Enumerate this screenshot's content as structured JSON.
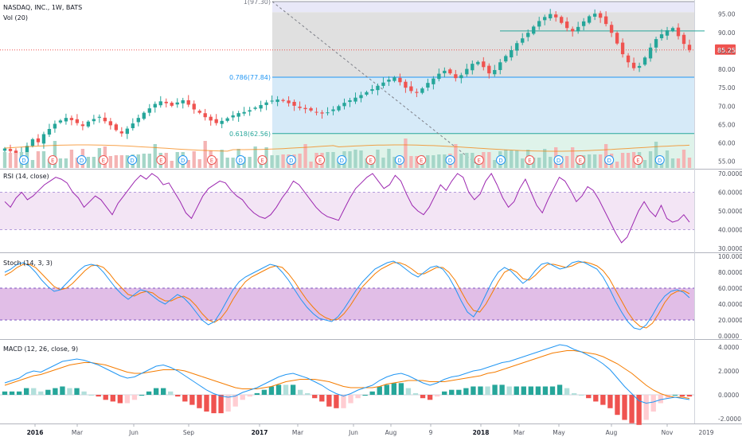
{
  "header": {
    "symbol_title": "NASDAQ, INC., 1W, BATS",
    "volume_label": "Vol (20)"
  },
  "price_tag": {
    "label": "85.25",
    "value": 85.25,
    "color": "#ef5350"
  },
  "colors": {
    "up": "#26a69a",
    "down": "#ef5350",
    "vol_up": "#a5d6c8",
    "vol_down": "#f4b4b4",
    "rsi_line": "#9c27b0",
    "rsi_band": "#f3e5f5",
    "stoch_k": "#2196f3",
    "stoch_d": "#f57c00",
    "stoch_band": "#e1bee7",
    "macd_line": "#2196f3",
    "signal_line": "#f57c00",
    "fib_top_fill": "#e8e8f8",
    "fib_mid_fill": "#e0e0e0",
    "fib_786_fill": "#d6eaf8",
    "fib_618_fill": "#dff3ea",
    "fib_786_line": "#2196f3",
    "fib_618_line": "#26a69a",
    "resistance_line": "#26a69a"
  },
  "fib": {
    "top": {
      "label": "1(97.30)",
      "value": 97.3
    },
    "l786": {
      "label": "0.786(77.84)",
      "value": 77.84
    },
    "l618": {
      "label": "0.618(62.56)",
      "value": 62.56
    }
  },
  "events": [
    "D",
    "E",
    "D",
    "E",
    "D",
    "E",
    "D",
    "E",
    "D",
    "E",
    "D",
    "E",
    "D",
    "E",
    "D",
    "E",
    "D",
    "E",
    "D",
    "E",
    "D",
    "E",
    "D",
    "E",
    "D"
  ],
  "chart_data": [
    {
      "type": "candlestick",
      "title": "NASDAQ, INC., 1W, BATS",
      "ylim": [
        53,
        97.3
      ],
      "y_ticks": [
        "95.00",
        "90.00",
        "85.00",
        "80.00",
        "75.00",
        "70.00",
        "65.00",
        "60.00",
        "55.00"
      ],
      "last_price": 85.25,
      "resistance_level": 90.4,
      "close_series": [
        58.5,
        57.8,
        56.9,
        57.5,
        59.2,
        61.0,
        60.2,
        62.4,
        63.8,
        65.2,
        66.1,
        66.8,
        66.2,
        65.4,
        64.6,
        65.8,
        66.5,
        67.1,
        65.9,
        64.8,
        63.5,
        62.6,
        63.9,
        65.3,
        66.8,
        68.2,
        69.4,
        70.6,
        71.3,
        70.8,
        70.1,
        71.0,
        71.6,
        70.4,
        69.1,
        68.2,
        67.0,
        66.1,
        65.4,
        66.0,
        66.7,
        67.5,
        68.1,
        68.4,
        68.9,
        69.6,
        70.3,
        71.0,
        71.5,
        71.8,
        71.4,
        70.8,
        70.1,
        69.5,
        69.2,
        68.8,
        68.4,
        68.0,
        68.3,
        69.1,
        70.0,
        70.9,
        71.6,
        72.3,
        73.0,
        73.8,
        74.6,
        75.5,
        76.4,
        77.2,
        77.8,
        76.5,
        75.0,
        74.1,
        73.6,
        74.8,
        76.3,
        77.5,
        78.8,
        79.6,
        78.9,
        77.6,
        78.4,
        80.1,
        81.5,
        82.0,
        80.6,
        78.9,
        79.8,
        81.9,
        83.6,
        85.2,
        87.1,
        88.4,
        89.9,
        91.6,
        93.1,
        94.2,
        95.0,
        94.1,
        92.6,
        91.2,
        90.3,
        91.5,
        93.0,
        94.4,
        95.1,
        94.0,
        92.3,
        89.9,
        87.0,
        84.1,
        81.9,
        80.3,
        80.9,
        83.2,
        85.9,
        88.2,
        89.5,
        90.6,
        91.2,
        89.0,
        86.9,
        85.25
      ],
      "volume_label": "Vol (20)",
      "event_markers": [
        "D",
        "E",
        "D",
        "E",
        "D",
        "E",
        "D",
        "E",
        "D",
        "E",
        "D",
        "E",
        "D",
        "E",
        "D",
        "E",
        "D",
        "E",
        "D",
        "E",
        "D",
        "E",
        "D",
        "E",
        "D"
      ]
    },
    {
      "type": "line",
      "title": "RSI (14, close)",
      "ylim": [
        30,
        70
      ],
      "y_ticks": [
        "70.0000",
        "60.0000",
        "50.0000",
        "40.0000",
        "30.0000"
      ],
      "band": [
        40,
        60
      ],
      "series": [
        {
          "values": [
            55,
            52,
            57,
            60,
            56,
            58,
            61,
            64,
            66,
            68,
            67,
            65,
            60,
            57,
            52,
            55,
            58,
            56,
            52,
            48,
            54,
            58,
            62,
            66,
            69,
            67,
            70,
            68,
            64,
            65,
            60,
            55,
            49,
            46,
            52,
            58,
            62,
            64,
            66,
            65,
            61,
            58,
            56,
            52,
            49,
            47,
            46,
            48,
            52,
            57,
            61,
            66,
            64,
            60,
            56,
            52,
            49,
            47,
            46,
            45,
            51,
            57,
            62,
            65,
            68,
            70,
            66,
            62,
            64,
            69,
            66,
            59,
            53,
            50,
            48,
            52,
            58,
            64,
            61,
            66,
            70,
            68,
            60,
            56,
            59,
            66,
            70,
            64,
            57,
            52,
            55,
            62,
            67,
            60,
            53,
            49,
            56,
            62,
            68,
            66,
            61,
            55,
            58,
            63,
            61,
            56,
            50,
            44,
            38,
            33,
            36,
            43,
            50,
            55,
            50,
            47,
            53,
            46,
            44,
            45,
            48,
            44
          ]
        }
      ]
    },
    {
      "type": "line",
      "title": "Stoch (14, 3, 3)",
      "ylim": [
        0,
        100
      ],
      "y_ticks": [
        "100.0000",
        "80.0000",
        "60.0000",
        "40.0000",
        "20.0000",
        "0.0000"
      ],
      "band": [
        20,
        80
      ],
      "series": [
        {
          "name": "%K",
          "values": [
            80,
            84,
            90,
            92,
            88,
            80,
            70,
            62,
            56,
            58,
            66,
            74,
            82,
            88,
            90,
            88,
            80,
            70,
            60,
            52,
            46,
            52,
            58,
            56,
            50,
            44,
            40,
            46,
            52,
            48,
            40,
            30,
            20,
            14,
            18,
            30,
            44,
            58,
            68,
            74,
            78,
            82,
            86,
            90,
            88,
            80,
            70,
            58,
            46,
            36,
            28,
            22,
            20,
            18,
            24,
            34,
            46,
            58,
            68,
            76,
            84,
            88,
            92,
            94,
            90,
            84,
            78,
            74,
            80,
            86,
            88,
            84,
            74,
            60,
            44,
            30,
            24,
            36,
            52,
            68,
            80,
            86,
            82,
            74,
            66,
            72,
            82,
            90,
            92,
            88,
            84,
            86,
            92,
            94,
            92,
            88,
            84,
            74,
            60,
            44,
            30,
            18,
            10,
            8,
            14,
            26,
            40,
            50,
            56,
            58,
            55,
            48
          ]
        },
        {
          "name": "%D",
          "values": [
            76,
            80,
            86,
            90,
            90,
            86,
            78,
            70,
            62,
            58,
            60,
            66,
            74,
            82,
            88,
            89,
            86,
            78,
            68,
            60,
            52,
            50,
            54,
            56,
            54,
            48,
            44,
            44,
            48,
            50,
            46,
            38,
            28,
            20,
            17,
            22,
            32,
            46,
            58,
            68,
            74,
            78,
            82,
            86,
            88,
            86,
            78,
            68,
            56,
            45,
            36,
            28,
            23,
            20,
            21,
            28,
            38,
            50,
            62,
            70,
            78,
            84,
            88,
            92,
            92,
            89,
            84,
            78,
            78,
            82,
            86,
            86,
            80,
            70,
            56,
            42,
            32,
            30,
            40,
            54,
            68,
            80,
            84,
            80,
            72,
            70,
            76,
            84,
            90,
            90,
            88,
            86,
            88,
            92,
            93,
            91,
            88,
            82,
            72,
            58,
            44,
            30,
            19,
            12,
            10,
            16,
            28,
            42,
            52,
            56,
            57,
            53
          ]
        }
      ]
    },
    {
      "type": "line",
      "title": "MACD (12, 26, close, 9)",
      "ylim": [
        -2.4,
        4.4
      ],
      "y_ticks": [
        "4.0000",
        "2.0000",
        "0.0000",
        "-2.0000"
      ],
      "series": [
        {
          "name": "MACD",
          "values": [
            1.0,
            1.2,
            1.4,
            1.8,
            2.0,
            1.9,
            2.2,
            2.5,
            2.8,
            2.9,
            3.0,
            2.9,
            2.7,
            2.5,
            2.2,
            1.9,
            1.6,
            1.4,
            1.5,
            1.8,
            2.1,
            2.4,
            2.5,
            2.3,
            2.0,
            1.6,
            1.2,
            0.8,
            0.4,
            0.1,
            -0.1,
            -0.2,
            -0.1,
            0.2,
            0.4,
            0.6,
            0.9,
            1.2,
            1.5,
            1.7,
            1.8,
            1.6,
            1.4,
            1.1,
            0.8,
            0.4,
            0.1,
            -0.1,
            0.1,
            0.4,
            0.6,
            0.8,
            1.2,
            1.5,
            1.7,
            1.8,
            1.6,
            1.3,
            1.0,
            0.8,
            1.0,
            1.3,
            1.5,
            1.6,
            1.8,
            2.0,
            2.1,
            2.3,
            2.5,
            2.7,
            2.8,
            3.0,
            3.2,
            3.4,
            3.6,
            3.8,
            4.0,
            4.2,
            4.1,
            3.8,
            3.6,
            3.3,
            3.0,
            2.6,
            2.1,
            1.4,
            0.7,
            0.1,
            -0.5,
            -0.7,
            -0.6,
            -0.4,
            -0.3,
            -0.2,
            -0.3,
            -0.4
          ]
        },
        {
          "name": "Signal",
          "values": [
            0.8,
            1.0,
            1.2,
            1.4,
            1.6,
            1.7,
            1.9,
            2.1,
            2.3,
            2.5,
            2.6,
            2.7,
            2.7,
            2.6,
            2.5,
            2.3,
            2.1,
            1.9,
            1.8,
            1.8,
            1.9,
            2.0,
            2.1,
            2.1,
            2.1,
            2.0,
            1.8,
            1.6,
            1.4,
            1.2,
            1.0,
            0.8,
            0.6,
            0.5,
            0.5,
            0.5,
            0.6,
            0.7,
            0.9,
            1.1,
            1.2,
            1.3,
            1.3,
            1.3,
            1.2,
            1.1,
            0.9,
            0.7,
            0.6,
            0.6,
            0.6,
            0.6,
            0.7,
            0.9,
            1.0,
            1.1,
            1.2,
            1.2,
            1.2,
            1.1,
            1.1,
            1.1,
            1.2,
            1.3,
            1.4,
            1.5,
            1.6,
            1.8,
            1.9,
            2.1,
            2.3,
            2.5,
            2.7,
            2.9,
            3.1,
            3.3,
            3.5,
            3.6,
            3.7,
            3.7,
            3.6,
            3.5,
            3.4,
            3.2,
            2.9,
            2.6,
            2.2,
            1.8,
            1.3,
            0.8,
            0.4,
            0.1,
            -0.1,
            -0.2,
            -0.2,
            -0.3
          ]
        }
      ]
    }
  ],
  "x_axis": [
    {
      "label": "2016",
      "bold": true
    },
    {
      "label": "Mar",
      "bold": false
    },
    {
      "label": "Jun",
      "bold": false
    },
    {
      "label": "Sep",
      "bold": false
    },
    {
      "label": "2017",
      "bold": true
    },
    {
      "label": "Mar",
      "bold": false
    },
    {
      "label": "Jun",
      "bold": false
    },
    {
      "label": "Aug",
      "bold": false
    },
    {
      "label": "9",
      "bold": false
    },
    {
      "label": "2018",
      "bold": true
    },
    {
      "label": "Mar",
      "bold": false
    },
    {
      "label": "May",
      "bold": false
    },
    {
      "label": "Aug",
      "bold": false
    },
    {
      "label": "Nov",
      "bold": false
    },
    {
      "label": "2019",
      "bold": false
    }
  ],
  "pane_titles": {
    "rsi": "RSI (14, close)",
    "stoch": "Stoch (14, 3, 3)",
    "macd": "MACD (12, 26, close, 9)"
  }
}
